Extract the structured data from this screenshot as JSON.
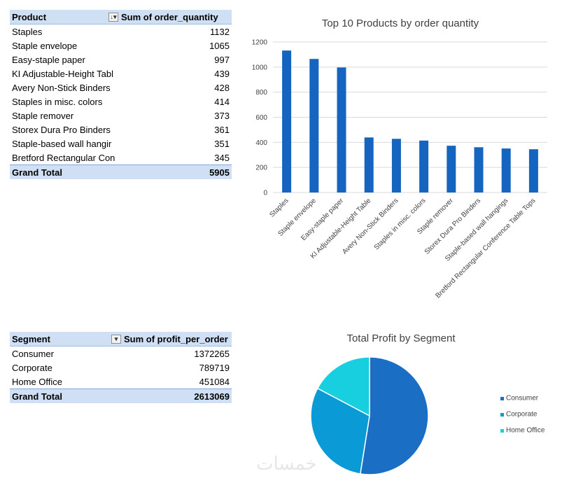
{
  "table1": {
    "header": {
      "col1": "Product",
      "col2": "Sum of order_quantity"
    },
    "rows": [
      {
        "label": "Staples",
        "value": "1132"
      },
      {
        "label": "Staple envelope",
        "value": "1065"
      },
      {
        "label": "Easy-staple paper",
        "value": "997"
      },
      {
        "label": "KI Adjustable-Height Tabl",
        "value": "439"
      },
      {
        "label": "Avery Non-Stick Binders",
        "value": "428"
      },
      {
        "label": "Staples in misc. colors",
        "value": "414"
      },
      {
        "label": "Staple remover",
        "value": "373"
      },
      {
        "label": "Storex Dura Pro Binders",
        "value": "361"
      },
      {
        "label": "Staple-based wall hangir",
        "value": "351"
      },
      {
        "label": "Bretford Rectangular Con",
        "value": "345"
      }
    ],
    "total": {
      "label": "Grand Total",
      "value": "5905"
    }
  },
  "table2": {
    "header": {
      "col1": "Segment",
      "col2": "Sum of profit_per_order"
    },
    "rows": [
      {
        "label": "Consumer",
        "value": "1372265"
      },
      {
        "label": "Corporate",
        "value": "789719"
      },
      {
        "label": "Home Office",
        "value": "451084"
      }
    ],
    "total": {
      "label": "Grand Total",
      "value": "2613069"
    }
  },
  "chart_data": [
    {
      "type": "bar",
      "title": "Top 10 Products by order quantity",
      "categories": [
        "Staples",
        "Staple envelope",
        "Easy-staple paper",
        "KI Adjustable-Height Table",
        "Avery Non-Stick Binders",
        "Staples in misc. colors",
        "Staple remover",
        "Storex Dura Pro Binders",
        "Staple-based wall hangings",
        "Bretford Rectangular Conference Table Tops"
      ],
      "values": [
        1132,
        1065,
        997,
        439,
        428,
        414,
        373,
        361,
        351,
        345
      ],
      "yticks": [
        "0",
        "200",
        "400",
        "600",
        "800",
        "1000",
        "1200"
      ],
      "ylim": [
        0,
        1200
      ],
      "grid": true,
      "color": "#1565c0"
    },
    {
      "type": "pie",
      "title": "Total Profit by Segment",
      "labels": [
        "Consumer",
        "Corporate",
        "Home Office"
      ],
      "values": [
        1372265,
        789719,
        451084
      ],
      "colors": [
        "#1a6fc4",
        "#0a9ad6",
        "#18cfe0"
      ],
      "legend": "right"
    }
  ],
  "watermark": "خمسات"
}
